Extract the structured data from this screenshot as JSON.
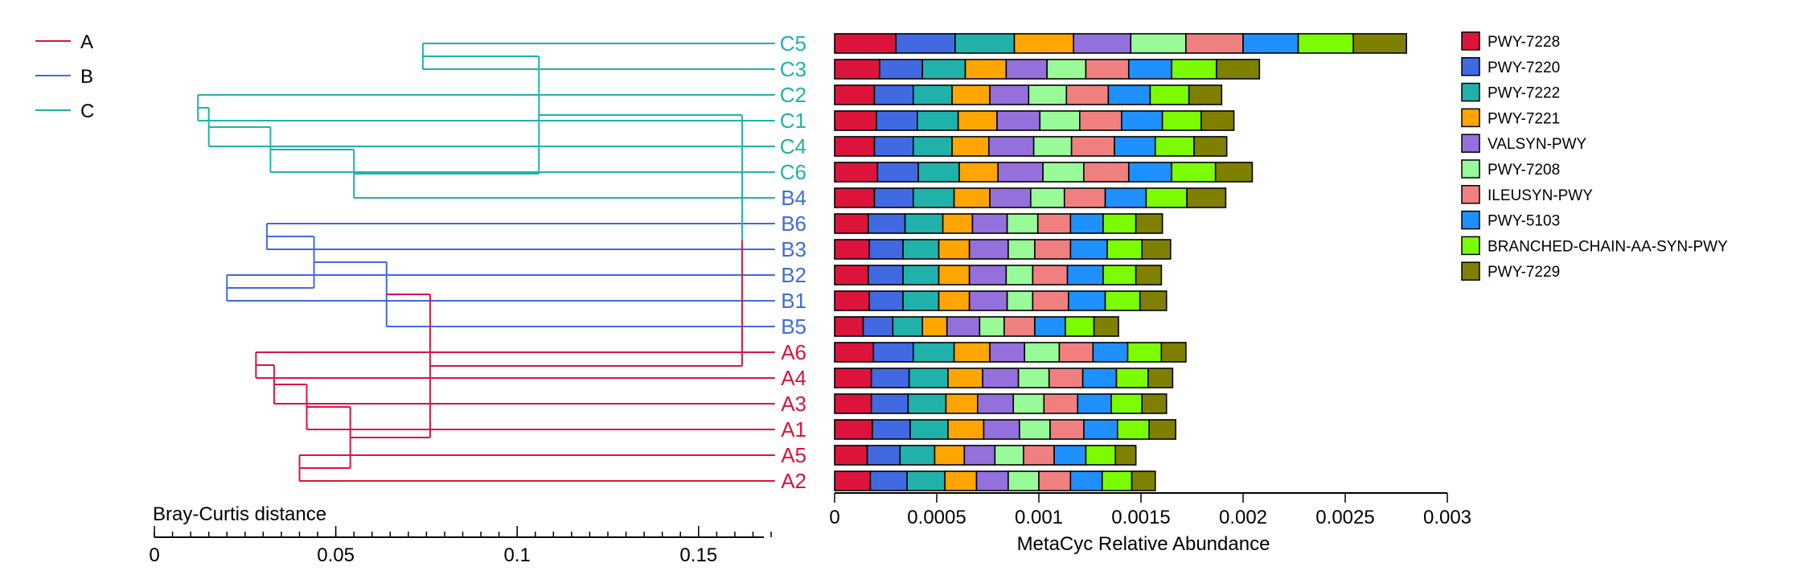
{
  "colors": {
    "A": "#dc143c",
    "B": "#4169e1",
    "C": "#20b2aa",
    "root": "#9b3c8c"
  },
  "chart_data": [
    {
      "type": "dendrogram",
      "distance_metric_label": "Bray-Curtis distance",
      "xlim": [
        0,
        0.168
      ],
      "major_ticks": [
        0,
        0.05,
        0.1,
        0.15
      ],
      "tick_labels": [
        "0",
        "0.05",
        "0.1",
        "0.15"
      ],
      "minor_step": 0.005,
      "group_legend": [
        {
          "label": "A",
          "color": "#dc143c"
        },
        {
          "label": "B",
          "color": "#4169e1"
        },
        {
          "label": "C",
          "color": "#20b2aa"
        }
      ],
      "leaves": [
        {
          "label": "C5",
          "group": "C"
        },
        {
          "label": "C3",
          "group": "C"
        },
        {
          "label": "C2",
          "group": "C"
        },
        {
          "label": "C1",
          "group": "C"
        },
        {
          "label": "C4",
          "group": "C"
        },
        {
          "label": "C6",
          "group": "C"
        },
        {
          "label": "B4",
          "group": "B"
        },
        {
          "label": "B6",
          "group": "B"
        },
        {
          "label": "B3",
          "group": "B"
        },
        {
          "label": "B2",
          "group": "B"
        },
        {
          "label": "B1",
          "group": "B"
        },
        {
          "label": "B5",
          "group": "B"
        },
        {
          "label": "A6",
          "group": "A"
        },
        {
          "label": "A4",
          "group": "A"
        },
        {
          "label": "A3",
          "group": "A"
        },
        {
          "label": "A1",
          "group": "A"
        },
        {
          "label": "A5",
          "group": "A"
        },
        {
          "label": "A2",
          "group": "A"
        }
      ],
      "merges": [
        {
          "id": "m1",
          "a": "C2",
          "b": "C1",
          "height": 0.012,
          "group": "C"
        },
        {
          "id": "m2",
          "a": "m1",
          "b": "C4",
          "height": 0.015,
          "group": "C"
        },
        {
          "id": "m3",
          "a": "m2",
          "b": "C6",
          "height": 0.032,
          "group": "C"
        },
        {
          "id": "m4",
          "a": "m3",
          "b": "B4",
          "height": 0.055,
          "group": "C"
        },
        {
          "id": "m5",
          "a": "C5",
          "b": "C3",
          "height": 0.074,
          "group": "C"
        },
        {
          "id": "m6",
          "a": "m5",
          "b": "m4",
          "height": 0.106,
          "group": "C"
        },
        {
          "id": "m7",
          "a": "B2",
          "b": "B1",
          "height": 0.02,
          "group": "B"
        },
        {
          "id": "m8",
          "a": "B6",
          "b": "B3",
          "height": 0.031,
          "group": "B"
        },
        {
          "id": "m9",
          "a": "m8",
          "b": "m7",
          "height": 0.044,
          "group": "B"
        },
        {
          "id": "m10",
          "a": "m9",
          "b": "B5",
          "height": 0.064,
          "group": "B"
        },
        {
          "id": "m11",
          "a": "A6",
          "b": "A4",
          "height": 0.028,
          "group": "A"
        },
        {
          "id": "m12",
          "a": "m11",
          "b": "A3",
          "height": 0.033,
          "group": "A"
        },
        {
          "id": "m13",
          "a": "m12",
          "b": "A1",
          "height": 0.042,
          "group": "A"
        },
        {
          "id": "m14",
          "a": "A5",
          "b": "A2",
          "height": 0.04,
          "group": "A"
        },
        {
          "id": "m15",
          "a": "m13",
          "b": "m14",
          "height": 0.054,
          "group": "A"
        },
        {
          "id": "m16",
          "a": "m10",
          "b": "m15",
          "height": 0.076,
          "group": "A"
        },
        {
          "id": "m17",
          "a": "m6",
          "b": "m16",
          "height": 0.162,
          "group": "root"
        }
      ]
    },
    {
      "type": "bar",
      "orientation": "horizontal",
      "stacked": true,
      "xlabel": "MetaCyc Relative Abundance",
      "xlim": [
        0,
        0.003
      ],
      "x_ticks": [
        0,
        0.0005,
        0.001,
        0.0015,
        0.002,
        0.0025,
        0.003
      ],
      "x_tick_labels": [
        "0",
        "0.0005",
        "0.001",
        "0.0015",
        "0.002",
        "0.0025",
        "0.003"
      ],
      "categories": [
        "C5",
        "C3",
        "C2",
        "C1",
        "C4",
        "C6",
        "B4",
        "B6",
        "B3",
        "B2",
        "B1",
        "B5",
        "A6",
        "A4",
        "A3",
        "A1",
        "A5",
        "A2"
      ],
      "legend_position": "right",
      "series": [
        {
          "name": "PWY-7228",
          "color": "#dc143c",
          "values": [
            0.0003,
            0.00022,
            0.000195,
            0.000205,
            0.000195,
            0.00021,
            0.000195,
            0.000165,
            0.00017,
            0.000165,
            0.00017,
            0.00014,
            0.00019,
            0.00018,
            0.00018,
            0.000185,
            0.00016,
            0.000175
          ]
        },
        {
          "name": "PWY-7220",
          "color": "#4169e1",
          "values": [
            0.00029,
            0.00021,
            0.00019,
            0.0002,
            0.00019,
            0.0002,
            0.00019,
            0.00018,
            0.000165,
            0.00017,
            0.000165,
            0.000145,
            0.000195,
            0.000185,
            0.00018,
            0.000185,
            0.00016,
            0.00018
          ]
        },
        {
          "name": "PWY-7222",
          "color": "#20b2aa",
          "values": [
            0.00029,
            0.00021,
            0.00019,
            0.0002,
            0.00019,
            0.0002,
            0.0002,
            0.000185,
            0.000175,
            0.000175,
            0.000175,
            0.000145,
            0.0002,
            0.00019,
            0.000185,
            0.000185,
            0.00017,
            0.000185
          ]
        },
        {
          "name": "PWY-7221",
          "color": "#ffa500",
          "values": [
            0.00029,
            0.0002,
            0.000185,
            0.00019,
            0.00018,
            0.00019,
            0.000175,
            0.000145,
            0.00015,
            0.00015,
            0.00015,
            0.00012,
            0.000175,
            0.00017,
            0.000155,
            0.000175,
            0.000145,
            0.000155
          ]
        },
        {
          "name": "VALSYN-PWY",
          "color": "#9370db",
          "values": [
            0.00028,
            0.0002,
            0.00019,
            0.00021,
            0.00022,
            0.00022,
            0.0002,
            0.00017,
            0.00019,
            0.00018,
            0.000185,
            0.00016,
            0.00017,
            0.000175,
            0.000175,
            0.000175,
            0.00015,
            0.000155
          ]
        },
        {
          "name": "PWY-7208",
          "color": "#98fb98",
          "values": [
            0.00027,
            0.00019,
            0.000185,
            0.000195,
            0.000185,
            0.0002,
            0.000165,
            0.00015,
            0.00013,
            0.00013,
            0.000125,
            0.00012,
            0.00017,
            0.00015,
            0.00015,
            0.00015,
            0.00014,
            0.00015
          ]
        },
        {
          "name": "ILEUSYN-PWY",
          "color": "#f08080",
          "values": [
            0.00028,
            0.00021,
            0.000205,
            0.000205,
            0.00021,
            0.00022,
            0.0002,
            0.00016,
            0.000175,
            0.00017,
            0.000175,
            0.00015,
            0.000165,
            0.000165,
            0.000165,
            0.000165,
            0.00015,
            0.000155
          ]
        },
        {
          "name": "PWY-5103",
          "color": "#1e90ff",
          "values": [
            0.00027,
            0.00021,
            0.000205,
            0.0002,
            0.0002,
            0.00021,
            0.0002,
            0.00016,
            0.00018,
            0.000175,
            0.00018,
            0.00015,
            0.00017,
            0.000165,
            0.000165,
            0.000165,
            0.000155,
            0.000155
          ]
        },
        {
          "name": "BRANCHED-CHAIN-AA-SYN-PWY",
          "color": "#7cfc00",
          "values": [
            0.00027,
            0.00022,
            0.00019,
            0.00019,
            0.00019,
            0.000215,
            0.0002,
            0.00016,
            0.00017,
            0.00016,
            0.00017,
            0.00014,
            0.000165,
            0.000155,
            0.00015,
            0.000155,
            0.000145,
            0.000145
          ]
        },
        {
          "name": "PWY-7229",
          "color": "#808000",
          "values": [
            0.00026,
            0.00021,
            0.00016,
            0.00016,
            0.00016,
            0.00018,
            0.00019,
            0.00013,
            0.00014,
            0.000125,
            0.00013,
            0.00012,
            0.00012,
            0.00012,
            0.00012,
            0.00013,
            0.0001,
            0.000115
          ]
        }
      ]
    }
  ]
}
